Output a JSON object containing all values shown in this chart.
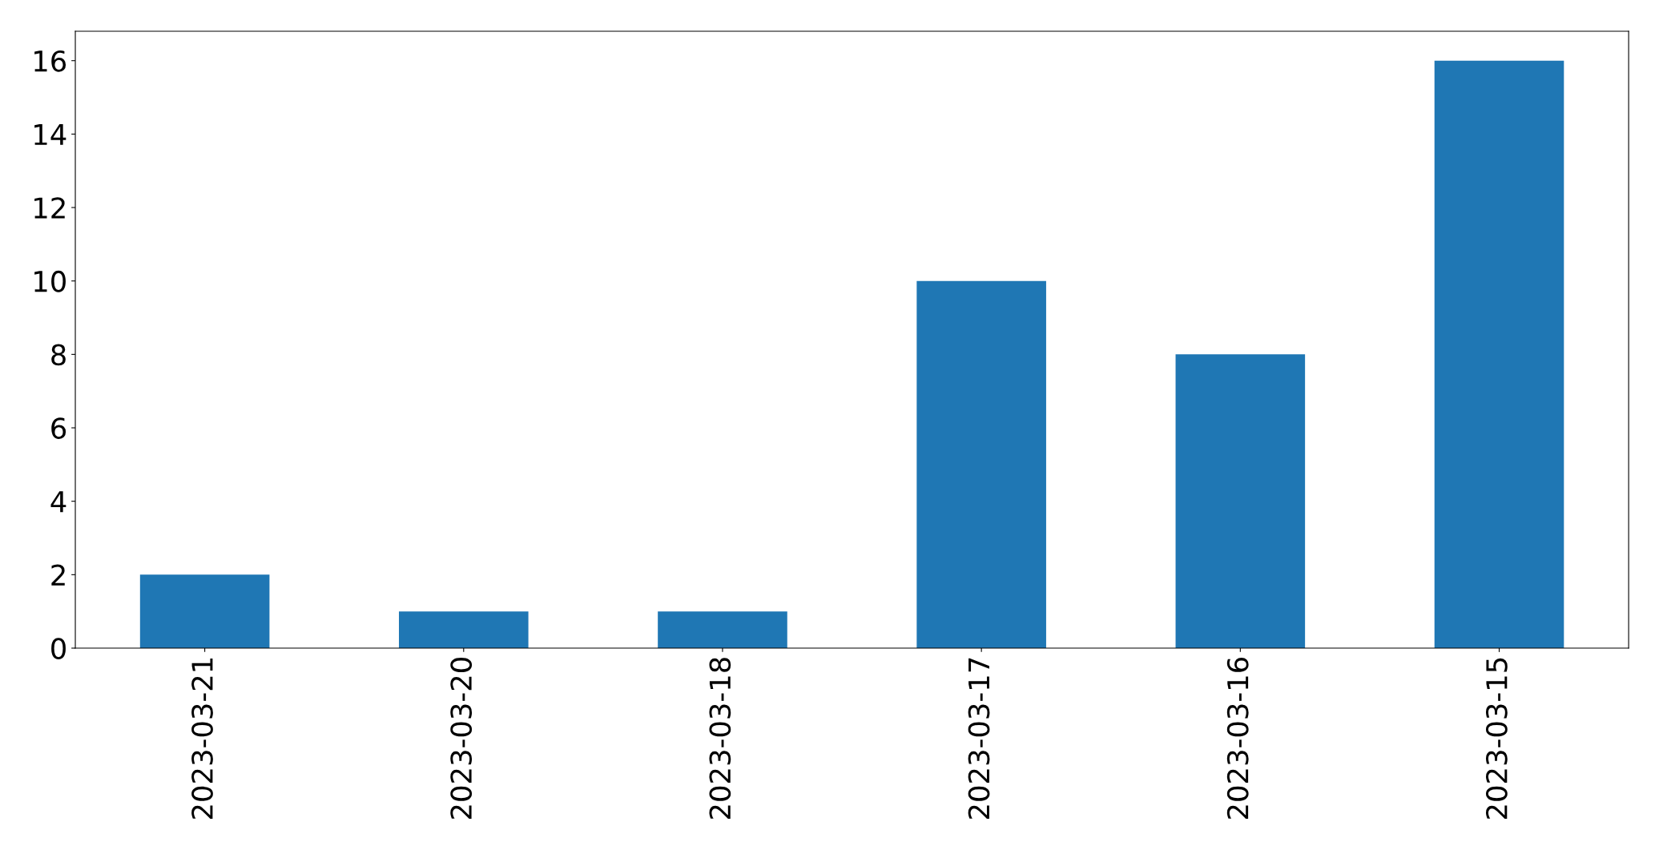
{
  "chart_data": {
    "type": "bar",
    "categories": [
      "2023-03-21",
      "2023-03-20",
      "2023-03-18",
      "2023-03-17",
      "2023-03-16",
      "2023-03-15"
    ],
    "values": [
      2,
      1,
      1,
      10,
      8,
      16
    ],
    "color": "#1f77b4",
    "ylim": [
      0,
      16.8
    ],
    "yticks": [
      0,
      2,
      4,
      6,
      8,
      10,
      12,
      14,
      16
    ],
    "grid": false
  }
}
